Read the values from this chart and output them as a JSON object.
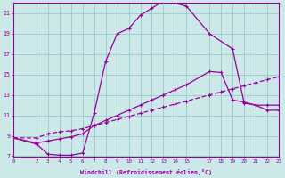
{
  "xlabel": "Windchill (Refroidissement éolien,°C)",
  "bg_color": "#cce8e8",
  "line_color": "#990099",
  "grid_color": "#99cccc",
  "xlim": [
    0,
    23
  ],
  "ylim": [
    7,
    22
  ],
  "xticks": [
    0,
    2,
    3,
    4,
    5,
    6,
    7,
    8,
    9,
    10,
    11,
    12,
    13,
    14,
    15,
    17,
    18,
    19,
    20,
    21,
    22,
    23
  ],
  "yticks": [
    7,
    9,
    11,
    13,
    15,
    17,
    19,
    21
  ],
  "line1_x": [
    0,
    2,
    3,
    4,
    5,
    6,
    7,
    8,
    9,
    10,
    11,
    12,
    13,
    14,
    15,
    17,
    19,
    20,
    21,
    22,
    23
  ],
  "line1_y": [
    8.8,
    8.2,
    7.2,
    7.1,
    7.1,
    7.3,
    11.2,
    16.3,
    19.0,
    19.5,
    20.8,
    21.5,
    22.2,
    22.0,
    21.7,
    19.0,
    17.5,
    12.2,
    12.0,
    11.5,
    11.5
  ],
  "line2_x": [
    0,
    2,
    3,
    4,
    5,
    6,
    7,
    8,
    9,
    10,
    11,
    12,
    13,
    14,
    15,
    17,
    18,
    19,
    20,
    21,
    22,
    23
  ],
  "line2_y": [
    8.8,
    8.8,
    9.2,
    9.4,
    9.5,
    9.7,
    10.0,
    10.3,
    10.6,
    10.9,
    11.2,
    11.5,
    11.8,
    12.1,
    12.4,
    13.0,
    13.3,
    13.6,
    13.9,
    14.2,
    14.5,
    14.8
  ],
  "line3_x": [
    0,
    2,
    3,
    4,
    5,
    6,
    7,
    8,
    9,
    10,
    11,
    12,
    13,
    14,
    15,
    17,
    18,
    19,
    20,
    21,
    22,
    23
  ],
  "line3_y": [
    8.8,
    8.3,
    8.5,
    8.7,
    8.9,
    9.2,
    10.0,
    10.5,
    11.0,
    11.5,
    12.0,
    12.5,
    13.0,
    13.5,
    14.0,
    15.3,
    15.2,
    12.5,
    12.3,
    12.0,
    12.0,
    12.0
  ]
}
